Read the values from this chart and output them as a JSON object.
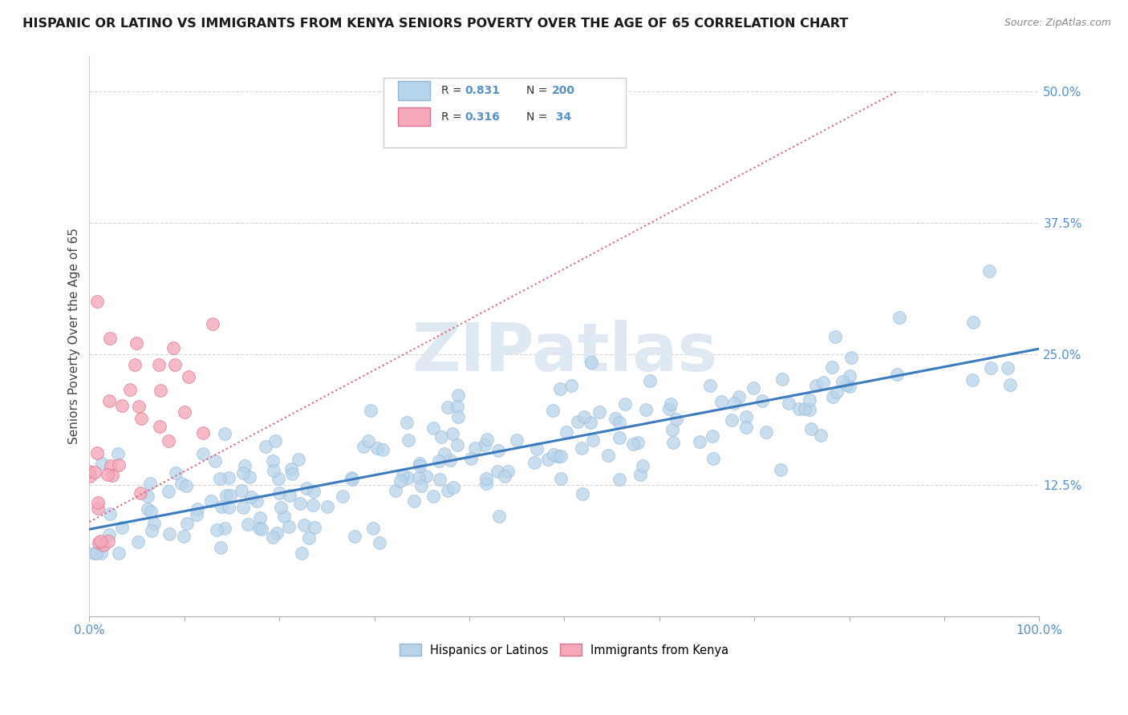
{
  "title": "HISPANIC OR LATINO VS IMMIGRANTS FROM KENYA SENIORS POVERTY OVER THE AGE OF 65 CORRELATION CHART",
  "source": "Source: ZipAtlas.com",
  "ylabel": "Seniors Poverty Over the Age of 65",
  "watermark": "ZIPatlas",
  "blue_color": "#b8d4ea",
  "blue_edge_color": "#90b8d8",
  "pink_color": "#f4a8b8",
  "pink_edge_color": "#d87090",
  "blue_line_color": "#3a7abf",
  "pink_line_color": "#e06080",
  "background_color": "#ffffff",
  "grid_color": "#cccccc",
  "tick_color": "#5590cc",
  "xmin": 0.0,
  "xmax": 1.0,
  "ymin": 0.055,
  "ymax": 0.535,
  "ytick_vals": [
    0.0,
    0.125,
    0.25,
    0.375,
    0.5
  ],
  "ytick_labels": [
    "",
    "12.5%",
    "25.0%",
    "37.5%",
    "50.0%"
  ],
  "blue_trend_x0": 0.0,
  "blue_trend_y0": 0.083,
  "blue_trend_x1": 1.0,
  "blue_trend_y1": 0.255,
  "pink_trend_x0": 0.0,
  "pink_trend_y0": 0.09,
  "pink_trend_x1": 0.85,
  "pink_trend_y1": 0.5
}
